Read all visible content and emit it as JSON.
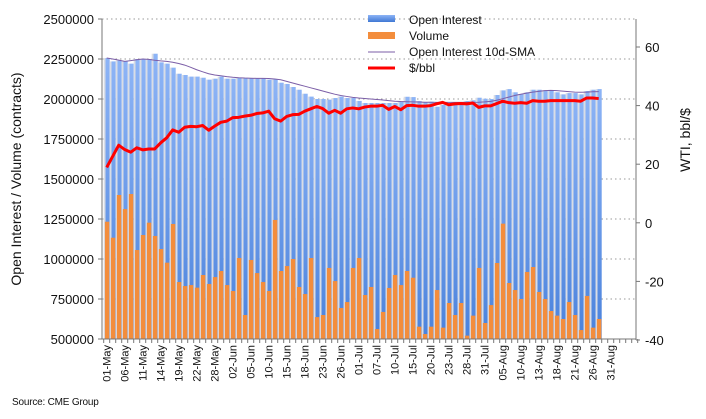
{
  "chart_data": {
    "type": "bar",
    "xlabel": "",
    "ylabel": "Open Interest / Volume (contracts)",
    "y2label": "WTI, bbl/$",
    "ylim": [
      500000,
      2500000
    ],
    "y2lim": [
      -40,
      60
    ],
    "yticks": [
      "500000",
      "750000",
      "1000000",
      "1250000",
      "1500000",
      "1750000",
      "2000000",
      "2250000",
      "2500000"
    ],
    "y2ticks": [
      "-40",
      "-20",
      "0",
      "20",
      "40",
      "60"
    ],
    "grid": true,
    "legend_position": "top-right",
    "source": "Source: CME Group",
    "tick_labels": [
      "01-May",
      "06-May",
      "11-May",
      "14-May",
      "19-May",
      "22-May",
      "28-May",
      "02-Jun",
      "05-Jun",
      "10-Jun",
      "15-Jun",
      "18-Jun",
      "23-Jun",
      "26-Jun",
      "01-Jul",
      "07-Jul",
      "10-Jul",
      "15-Jul",
      "20-Jul",
      "23-Jul",
      "28-Jul",
      "31-Jul",
      "05-Aug",
      "10-Aug",
      "13-Aug",
      "18-Aug",
      "21-Aug",
      "26-Aug",
      "31-Aug"
    ],
    "x": [
      "01-May",
      "04-May",
      "05-May",
      "06-May",
      "07-May",
      "08-May",
      "11-May",
      "12-May",
      "13-May",
      "14-May",
      "15-May",
      "18-May",
      "19-May",
      "20-May",
      "21-May",
      "22-May",
      "26-May",
      "27-May",
      "28-May",
      "29-May",
      "01-Jun",
      "02-Jun",
      "03-Jun",
      "04-Jun",
      "05-Jun",
      "08-Jun",
      "09-Jun",
      "10-Jun",
      "11-Jun",
      "12-Jun",
      "15-Jun",
      "16-Jun",
      "17-Jun",
      "18-Jun",
      "19-Jun",
      "22-Jun",
      "23-Jun",
      "24-Jun",
      "25-Jun",
      "26-Jun",
      "29-Jun",
      "30-Jun",
      "01-Jul",
      "02-Jul",
      "06-Jul",
      "07-Jul",
      "08-Jul",
      "09-Jul",
      "10-Jul",
      "13-Jul",
      "14-Jul",
      "15-Jul",
      "16-Jul",
      "17-Jul",
      "20-Jul",
      "21-Jul",
      "22-Jul",
      "23-Jul",
      "24-Jul",
      "27-Jul",
      "28-Jul",
      "29-Jul",
      "30-Jul",
      "31-Jul",
      "03-Aug",
      "04-Aug",
      "05-Aug",
      "06-Aug",
      "07-Aug",
      "10-Aug",
      "11-Aug",
      "12-Aug",
      "13-Aug",
      "14-Aug",
      "17-Aug",
      "18-Aug",
      "19-Aug",
      "20-Aug",
      "21-Aug",
      "24-Aug",
      "25-Aug",
      "26-Aug",
      "27-Aug"
    ],
    "series": [
      {
        "name": "Open Interest",
        "type": "bar",
        "axis": "left",
        "color": "#6f9ff0",
        "values": [
          2256000,
          2235000,
          2240000,
          2235000,
          2221000,
          2250000,
          2250000,
          2250000,
          2283000,
          2229000,
          2221000,
          2196000,
          2158000,
          2150000,
          2140000,
          2140000,
          2133000,
          2121000,
          2127000,
          2140000,
          2127000,
          2127000,
          2133000,
          2129000,
          2129000,
          2129000,
          2129000,
          2121000,
          2125000,
          2102000,
          2094000,
          2075000,
          2058000,
          2033000,
          2015000,
          2000000,
          2000000,
          1996000,
          2006000,
          2015000,
          2006000,
          2006000,
          1988000,
          1975000,
          1975000,
          1975000,
          1975000,
          1975000,
          1975000,
          1983000,
          2014000,
          2012000,
          1987000,
          1979000,
          1983000,
          1952000,
          1964000,
          1962000,
          1979000,
          1975000,
          1987000,
          1992000,
          2008000,
          2002000,
          2000000,
          2025000,
          2054000,
          2062000,
          2042000,
          2031000,
          2042000,
          2058000,
          2058000,
          2054000,
          2052000,
          2042000,
          2029000,
          2037000,
          2037000,
          2029000,
          2050000,
          2058000,
          2062000
        ]
      },
      {
        "name": "Volume",
        "type": "bar",
        "axis": "left",
        "color": "#f38d3c",
        "values": [
          1233000,
          1133000,
          1400000,
          1312000,
          1406000,
          1056000,
          1150000,
          1227000,
          1144000,
          1062000,
          977000,
          1219000,
          856000,
          831000,
          837000,
          821000,
          900000,
          844000,
          887000,
          925000,
          837000,
          800000,
          1006000,
          650000,
          994000,
          912000,
          856000,
          800000,
          1244000,
          925000,
          956000,
          1000000,
          825000,
          781000,
          1006000,
          637000,
          650000,
          944000,
          862000,
          694000,
          731000,
          944000,
          1006000,
          775000,
          825000,
          562000,
          669000,
          819000,
          900000,
          837000,
          925000,
          883000,
          577000,
          531000,
          577000,
          806000,
          571000,
          725000,
          650000,
          725000,
          521000,
          646000,
          944000,
          600000,
          712000,
          975000,
          1221000,
          850000,
          806000,
          750000,
          919000,
          950000,
          794000,
          750000,
          675000,
          646000,
          625000,
          731000,
          650000,
          556000,
          769000,
          571000,
          625000
        ]
      },
      {
        "name": "Open Interest 10d-SMA",
        "type": "line",
        "axis": "left",
        "color": "#7b5ea7",
        "values": [
          2256000,
          2250000,
          2243000,
          2235000,
          2240000,
          2245000,
          2250000,
          2248000,
          2242000,
          2238000,
          2235000,
          2230000,
          2222000,
          2212000,
          2198000,
          2183000,
          2170000,
          2158000,
          2150000,
          2145000,
          2140000,
          2136000,
          2133000,
          2131000,
          2130000,
          2129000,
          2129000,
          2128000,
          2125000,
          2120000,
          2110000,
          2100000,
          2090000,
          2080000,
          2070000,
          2060000,
          2050000,
          2040000,
          2030000,
          2022000,
          2016000,
          2010000,
          2006000,
          2003000,
          2000000,
          1997000,
          1994000,
          1990000,
          1986000,
          1984000,
          1983000,
          1982000,
          1981000,
          1980000,
          1980000,
          1979000,
          1979000,
          1979000,
          1979000,
          1979000,
          1979000,
          1979000,
          1980000,
          1982000,
          1985000,
          1992000,
          2002000,
          2012000,
          2022000,
          2030000,
          2037000,
          2043000,
          2048000,
          2052000,
          2054000,
          2052000,
          2049000,
          2046000,
          2043000,
          2042000,
          2043000,
          2045000,
          2046000
        ]
      },
      {
        "name": "$/bbl",
        "type": "line",
        "axis": "right",
        "color": "#ff0000",
        "values": [
          18.9,
          22.7,
          26.5,
          25,
          24.1,
          25.6,
          24.9,
          25.2,
          25.2,
          27.3,
          29,
          31.7,
          30.9,
          32.6,
          32.9,
          32.8,
          33.2,
          31.6,
          33,
          34.3,
          34.7,
          35.9,
          36,
          36.4,
          36.7,
          37.3,
          37.5,
          38.1,
          35.5,
          34.7,
          36.3,
          36.9,
          37,
          38.1,
          38.9,
          39.7,
          39,
          37.4,
          38.4,
          37.4,
          38.9,
          39.2,
          38.9,
          39.5,
          39.8,
          39.8,
          40.1,
          38.7,
          39.7,
          38.6,
          40,
          40.1,
          39.8,
          39.8,
          40,
          40.6,
          41.1,
          40.3,
          40.6,
          40.7,
          40.6,
          40.9,
          39.4,
          39.9,
          39.9,
          40.7,
          41.5,
          41,
          40.8,
          41,
          40.8,
          41.7,
          41.5,
          41.5,
          41.7,
          41.7,
          41.7,
          41.7,
          41.7,
          41.5,
          42.6,
          42.6,
          42.4
        ]
      }
    ]
  }
}
